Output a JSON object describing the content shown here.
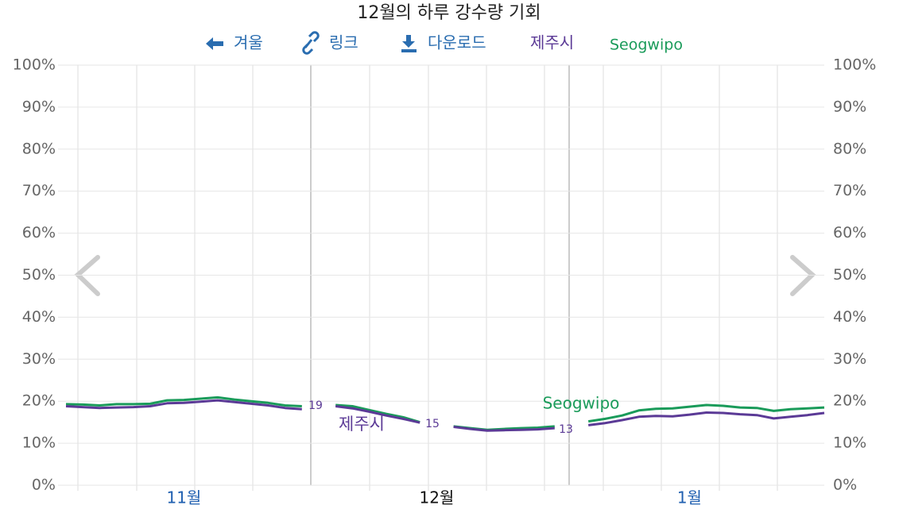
{
  "chart_data": {
    "type": "line",
    "title": "12월의 하루 강수량 기회",
    "nav": {
      "back": "겨울",
      "link": "링크",
      "download": "다운로드"
    },
    "categories": [
      null,
      null,
      null,
      null,
      null,
      null,
      null,
      "11월",
      null,
      null,
      null,
      null,
      null,
      null,
      null,
      null,
      null,
      null,
      null,
      null,
      null,
      null,
      "12월",
      null,
      null,
      null,
      null,
      null,
      null,
      null,
      null,
      null,
      null,
      null,
      null,
      null,
      null,
      "1월",
      null,
      null,
      null,
      null,
      null,
      null,
      null,
      null
    ],
    "series": [
      {
        "name": "제주시",
        "color": "#5b3a96",
        "values": [
          18.8,
          18.6,
          18.4,
          18.5,
          18.6,
          18.8,
          19.5,
          19.6,
          19.9,
          20.2,
          19.8,
          19.4,
          19.0,
          18.4,
          18.1,
          null,
          18.8,
          18.3,
          17.5,
          16.6,
          15.8,
          14.9,
          null,
          13.9,
          13.4,
          13.0,
          13.1,
          13.2,
          13.3,
          13.6,
          null,
          14.3,
          14.8,
          15.5,
          16.3,
          16.5,
          16.4,
          16.8,
          17.3,
          17.2,
          16.9,
          16.7,
          15.9,
          16.3,
          16.7,
          17.2
        ]
      },
      {
        "name": "Seogwipo",
        "color": "#1a9b5a",
        "values": [
          19.3,
          19.2,
          19.0,
          19.3,
          19.3,
          19.4,
          20.2,
          20.3,
          20.6,
          20.9,
          20.4,
          20.0,
          19.6,
          19.0,
          18.8,
          null,
          19.1,
          18.8,
          17.9,
          17.0,
          16.2,
          15.0,
          null,
          14.0,
          13.6,
          13.2,
          13.4,
          13.6,
          13.7,
          14.0,
          null,
          15.2,
          15.8,
          16.6,
          17.8,
          18.2,
          18.3,
          18.7,
          19.1,
          18.9,
          18.5,
          18.4,
          17.7,
          18.1,
          18.3,
          18.5
        ]
      }
    ],
    "annotations": [
      "19",
      "15",
      "13"
    ],
    "ylim": [
      0,
      100
    ],
    "yticks": [
      {
        "value": 0,
        "label": "0%"
      },
      {
        "value": 10,
        "label": "10%"
      },
      {
        "value": 20,
        "label": "20%"
      },
      {
        "value": 30,
        "label": "30%"
      },
      {
        "value": 40,
        "label": "40%"
      },
      {
        "value": 50,
        "label": "50%"
      },
      {
        "value": 60,
        "label": "60%"
      },
      {
        "value": 70,
        "label": "70%"
      },
      {
        "value": 80,
        "label": "80%"
      },
      {
        "value": 90,
        "label": "90%"
      },
      {
        "value": 100,
        "label": "100%"
      }
    ],
    "grid": true
  }
}
